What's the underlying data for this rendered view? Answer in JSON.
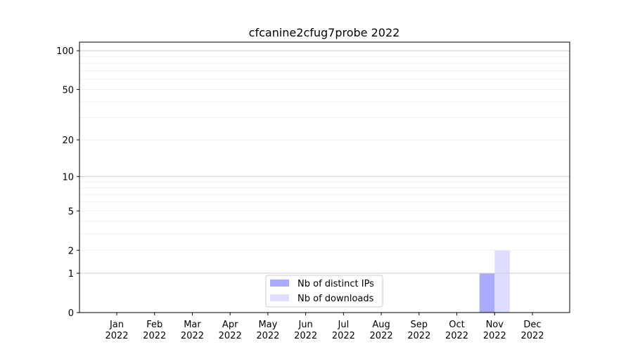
{
  "chart_data": {
    "type": "bar",
    "title": "cfcanine2cfug7probe 2022",
    "xlabel": "",
    "ylabel": "",
    "yscale": "symlog",
    "ylim": [
      0,
      116
    ],
    "grid": true,
    "legend_placement": "lower-center",
    "categories": [
      "Jan\n2022",
      "Feb\n2022",
      "Mar\n2022",
      "Apr\n2022",
      "May\n2022",
      "Jun\n2022",
      "Jul\n2022",
      "Aug\n2022",
      "Sep\n2022",
      "Oct\n2022",
      "Nov\n2022",
      "Dec\n2022"
    ],
    "yticks": [
      0,
      1,
      2,
      5,
      10,
      20,
      50,
      100
    ],
    "ytick_labels": [
      "0",
      "1",
      "2",
      "5",
      "10",
      "20",
      "50",
      "100"
    ],
    "series": [
      {
        "name": "Nb of distinct IPs",
        "color": "#aaaaff",
        "values": [
          0,
          0,
          0,
          0,
          0,
          0,
          0,
          0,
          0,
          0,
          1,
          0
        ]
      },
      {
        "name": "Nb of downloads",
        "color": "#ddddff",
        "values": [
          0,
          0,
          0,
          0,
          0,
          0,
          0,
          0,
          0,
          0,
          2,
          0
        ]
      }
    ]
  }
}
